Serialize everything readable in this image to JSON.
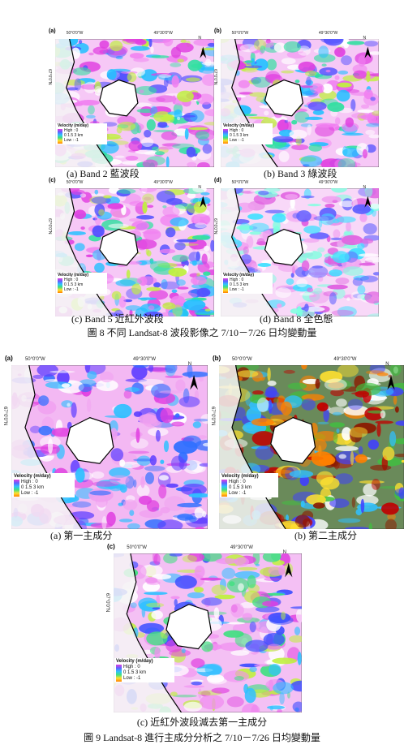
{
  "map": {
    "lon_left": "50°0'0\"W",
    "lon_right": "49°30'0\"W",
    "lat": "67°0'0\"N",
    "north": "N",
    "legend_title": "Velocity (m/day)",
    "legend_high": "High : 0",
    "scale": "0 1.5 3 km",
    "legend_low": "Low : -1"
  },
  "figure8": {
    "panels": [
      {
        "label": "(a)",
        "caption": "(a) Band 2 藍波段"
      },
      {
        "label": "(b)",
        "caption": "(b) Band 3 綠波段"
      },
      {
        "label": "(c)",
        "caption": "(c) Band 5 近紅外波段"
      },
      {
        "label": "(d)",
        "caption": "(d) Band 8 全色態"
      }
    ],
    "caption": "圖  8  不同 Landsat-8 波段影像之 7/10－7/26 日均變動量"
  },
  "figure9": {
    "panels": [
      {
        "label": "(a)",
        "caption": "(a)  第一主成分"
      },
      {
        "label": "(b)",
        "caption": "(b)  第二主成分"
      },
      {
        "label": "(c)",
        "caption": "(c)  近紅外波段減去第一主成分"
      }
    ],
    "caption": "圖 9 Landsat-8 進行主成分分析之 7/10－7/26 日均變動量"
  }
}
